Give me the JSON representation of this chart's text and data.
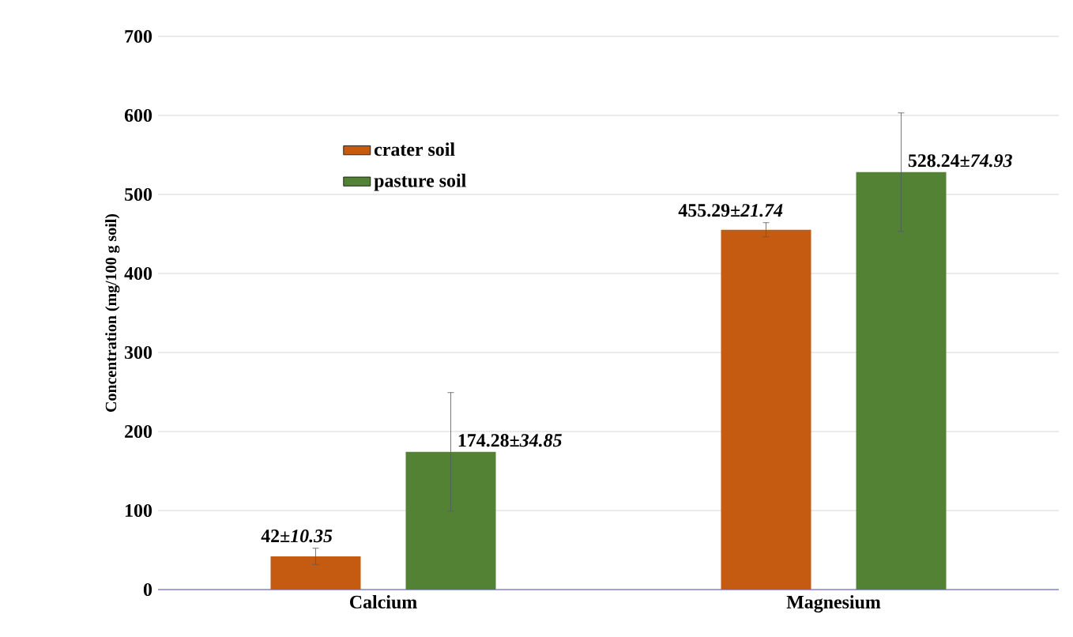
{
  "chart_data": {
    "type": "bar",
    "ylabel": "Concentration (mg/100 g soil)",
    "categories": [
      "Calcium",
      "Magnesium"
    ],
    "series": [
      {
        "name": "crater soil",
        "color": "#c55a11",
        "values": [
          42,
          455.29
        ],
        "errors": [
          10.35,
          9
        ],
        "value_labels": [
          "42±*10.35*",
          "455.29±*21.74*"
        ]
      },
      {
        "name": "pasture soil",
        "color": "#548235",
        "values": [
          174.28,
          528.24
        ],
        "errors": [
          75,
          74.93
        ],
        "value_labels": [
          "174.28±*34.85*",
          "528.24±*74.93*"
        ]
      }
    ],
    "ylim": [
      0,
      700
    ],
    "yticks": [
      0,
      100,
      200,
      300,
      400,
      500,
      600,
      700
    ],
    "grid": "y",
    "legend": "top left"
  }
}
